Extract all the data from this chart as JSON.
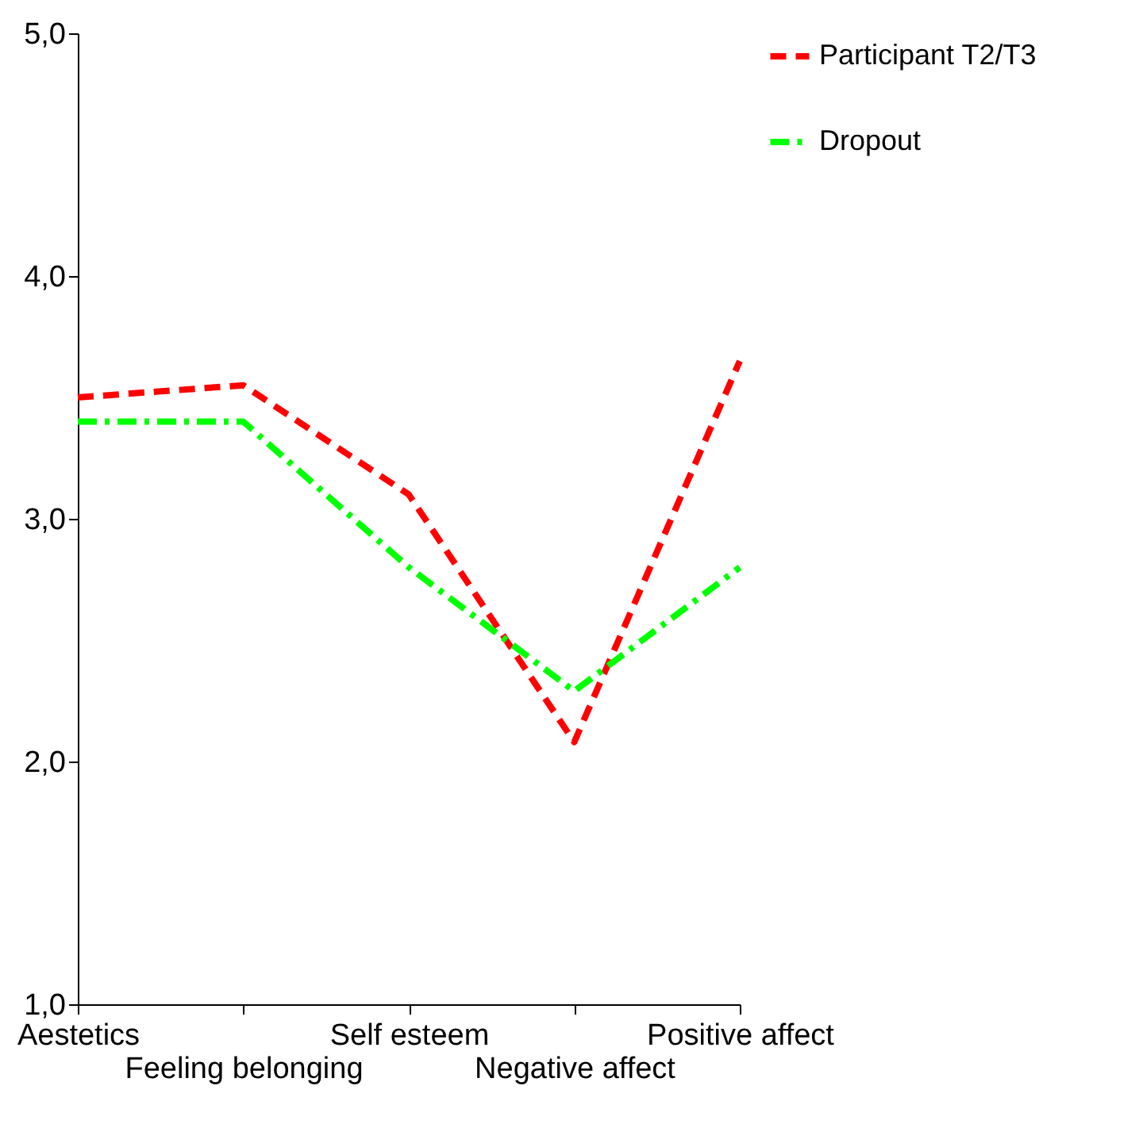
{
  "chart_data": {
    "type": "line",
    "categories": [
      "Aestetics",
      "Feeling belonging",
      "Self esteem",
      "Negative affect",
      "Positive affect"
    ],
    "series": [
      {
        "name": "Participant T2/T3",
        "color": "#ff0000",
        "line_style": "dashed",
        "values": [
          3.5,
          3.55,
          3.1,
          2.08,
          3.65
        ]
      },
      {
        "name": "Dropout",
        "color": "#00ff00",
        "line_style": "dashdot",
        "values": [
          3.4,
          3.4,
          2.8,
          2.29,
          2.8
        ]
      }
    ],
    "ylim": [
      1,
      5
    ],
    "yticks": [
      {
        "value": 1,
        "label": "1,0"
      },
      {
        "value": 2,
        "label": "2,0"
      },
      {
        "value": 3,
        "label": "3,0"
      },
      {
        "value": 4,
        "label": "4,0"
      },
      {
        "value": 5,
        "label": "5,0"
      }
    ],
    "grid": false,
    "legend": "right",
    "marker": "none"
  }
}
